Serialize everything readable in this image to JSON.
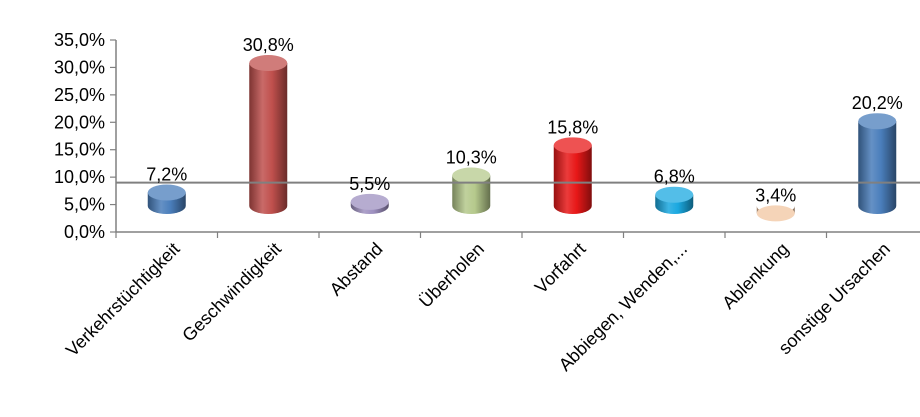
{
  "chart_data": {
    "type": "bar",
    "categories": [
      "Verkehrstüchtigkeit",
      "Geschwindigkeit",
      "Abstand",
      "Überholen",
      "Vorfahrt",
      "Abbiegen, Wenden,...",
      "Ablenkung",
      "sonstige Ursachen"
    ],
    "values": [
      7.2,
      30.8,
      5.5,
      10.3,
      15.8,
      6.8,
      3.4,
      20.2
    ],
    "value_labels": [
      "7,2%",
      "30,8%",
      "5,5%",
      "10,3%",
      "15,8%",
      "6,8%",
      "3,4%",
      "20,2%"
    ],
    "bar_colors": [
      "#4a7ebb",
      "#c0504d",
      "#9e90c0",
      "#b5c98c",
      "#e81818",
      "#1aa8e0",
      "#f2c5a0",
      "#4a7ebb"
    ],
    "yticks": [
      "0,0%",
      "5,0%",
      "10,0%",
      "15,0%",
      "20,0%",
      "25,0%",
      "30,0%",
      "35,0%"
    ],
    "ylim": [
      0,
      35
    ],
    "reference_line": 9,
    "title": "",
    "xlabel": "",
    "ylabel": "",
    "grid": false,
    "legend": false,
    "style": "3d-cylinder"
  }
}
